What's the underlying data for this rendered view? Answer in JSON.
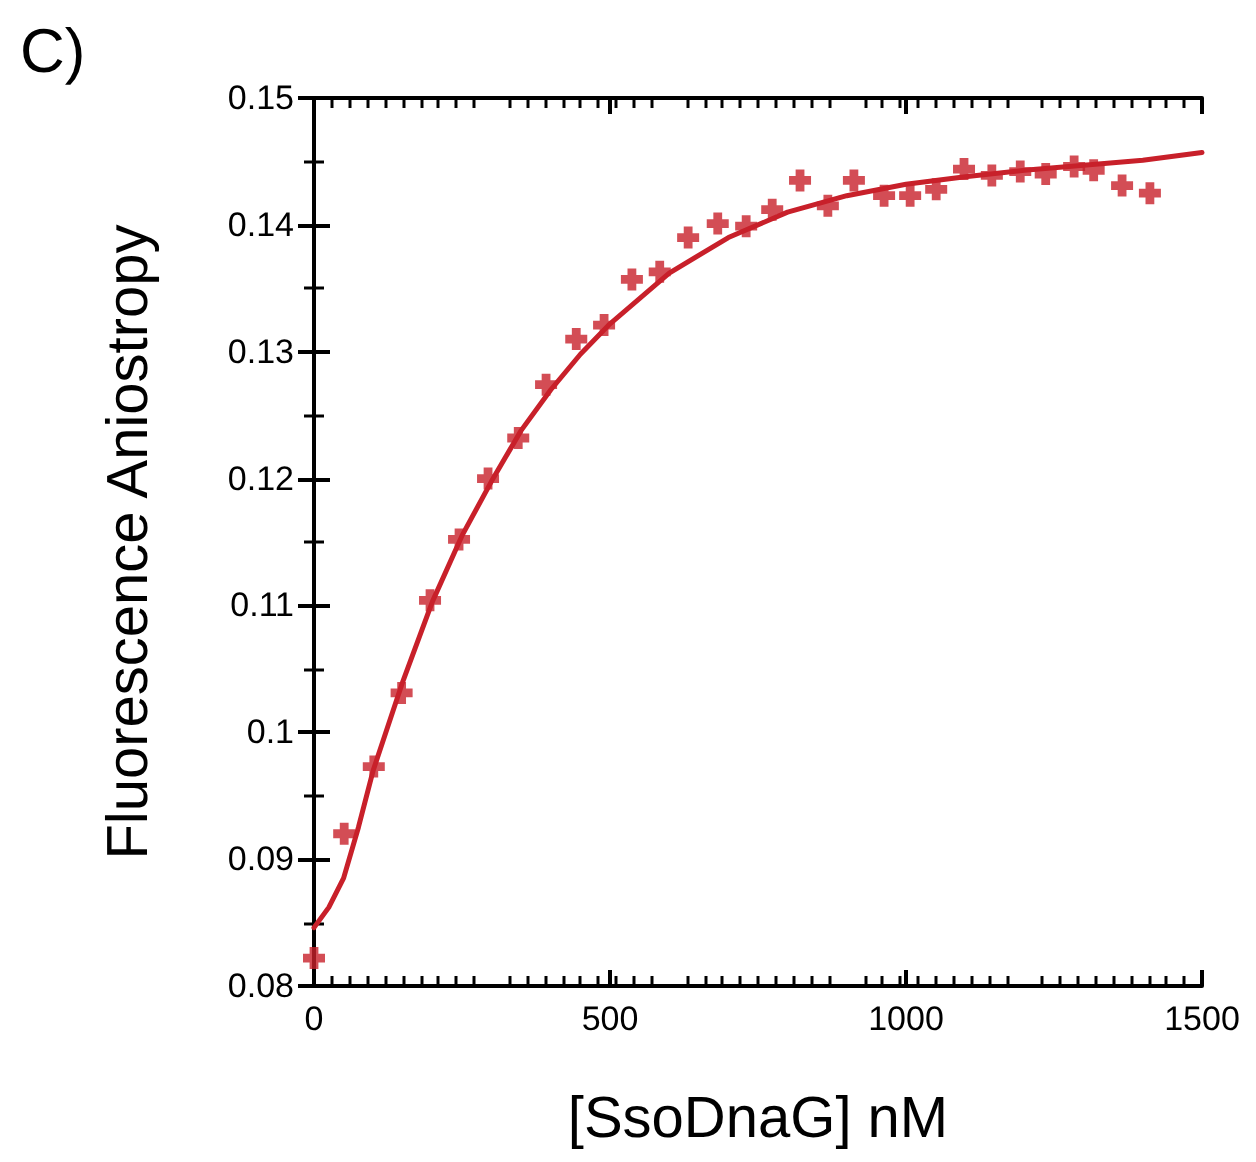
{
  "chart_data": {
    "type": "scatter",
    "xlabel": "[SsoDnaG] nM",
    "ylabel": "Fluorescence Aniostropy",
    "annotations": [
      "C)"
    ],
    "xlim": [
      0,
      1500
    ],
    "xticks": [
      0,
      500,
      1000,
      1500
    ],
    "ylim": [
      0.08,
      0.15
    ],
    "yticks": [
      0.08,
      0.09,
      0.1,
      0.11,
      0.12,
      0.13,
      0.14,
      0.15
    ],
    "grid": false,
    "marker": "cross",
    "series": [
      {
        "color": "#c8202a",
        "x": [
          0,
          51,
          101,
          148,
          196,
          245,
          294,
          345,
          392,
          443,
          490,
          537,
          584,
          632,
          682,
          730,
          774,
          821,
          868,
          912,
          963,
          1007,
          1051,
          1098,
          1145,
          1193,
          1236,
          1284,
          1317,
          1365,
          1412
        ],
        "values": [
          0.0822,
          0.092,
          0.0973,
          0.1031,
          0.1104,
          0.1152,
          0.12,
          0.1232,
          0.1274,
          0.131,
          0.1321,
          0.1357,
          0.1363,
          0.139,
          0.1401,
          0.1399,
          0.1412,
          0.1435,
          0.1415,
          0.1435,
          0.1423,
          0.1423,
          0.1428,
          0.1444,
          0.1439,
          0.1442,
          0.144,
          0.1446,
          0.1443,
          0.1431,
          0.1425
        ]
      },
      {
        "type": "line",
        "color": "#c8202a",
        "marker": "none",
        "line_style": "solid",
        "x": [
          0,
          25,
          50,
          75,
          100,
          150,
          200,
          250,
          300,
          350,
          400,
          450,
          500,
          600,
          700,
          800,
          900,
          1000,
          1100,
          1200,
          1300,
          1400,
          1500
        ],
        "values": [
          0.0846,
          0.0862,
          0.0885,
          0.0925,
          0.097,
          0.104,
          0.1103,
          0.1155,
          0.1198,
          0.1238,
          0.127,
          0.1298,
          0.1322,
          0.1362,
          0.139,
          0.141,
          0.1423,
          0.1432,
          0.1438,
          0.1443,
          0.1447,
          0.1451,
          0.1457
        ]
      }
    ]
  }
}
